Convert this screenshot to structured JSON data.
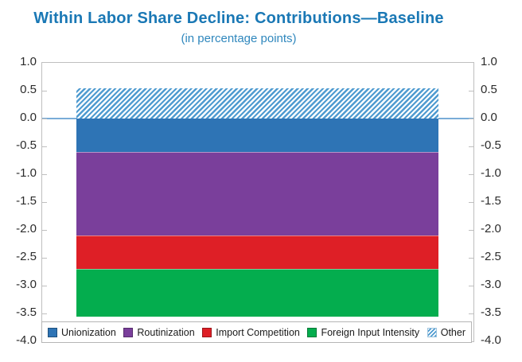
{
  "chart_data": {
    "type": "bar",
    "stacked": true,
    "orientation": "vertical",
    "title": "Within Labor Share Decline: Contributions—Baseline",
    "subtitle": "(in percentage points)",
    "categories": [
      ""
    ],
    "series": [
      {
        "name": "Unionization",
        "value": -0.6,
        "color": "#2E74B5",
        "pattern": "solid"
      },
      {
        "name": "Routinization",
        "value": -1.5,
        "color": "#7A3F9B",
        "pattern": "solid"
      },
      {
        "name": "Import Competition",
        "value": -0.6,
        "color": "#DE1F26",
        "pattern": "solid"
      },
      {
        "name": "Foreign Input Intensity",
        "value": -0.85,
        "color": "#04AD4E",
        "pattern": "solid"
      },
      {
        "name": "Other",
        "value": 0.55,
        "color": "#4F9BD0",
        "pattern": "diagonal-hatch"
      }
    ],
    "ylim": [
      -4.0,
      1.0
    ],
    "y_ticks": [
      "1.0",
      "0.5",
      "0.0",
      "-0.5",
      "-1.0",
      "-1.5",
      "-2.0",
      "-2.5",
      "-3.0",
      "-3.5",
      "-4.0"
    ],
    "y_axis_sides": [
      "left",
      "right"
    ],
    "grid": false,
    "zero_line": 0.0,
    "legend_position": "bottom-inside"
  },
  "style": {
    "title_color": "#1A78B5",
    "subtitle_color": "#2F87BD",
    "axis_label_color": "#2B2B2B",
    "plot_border_color": "#BFBFBF",
    "zero_line_color": "#79ACD8",
    "hatch_background": "#FFFFFF",
    "legend_border_color": "#B5B5B5",
    "swatch_border_color": "rgba(0,0,0,0.3)"
  }
}
